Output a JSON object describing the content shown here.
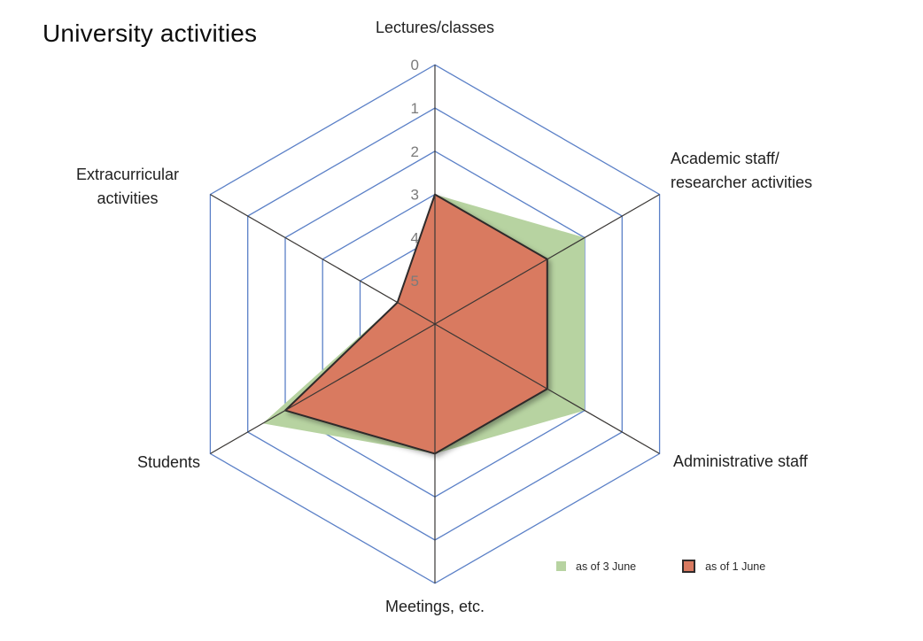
{
  "title": "University activities",
  "chart_data": {
    "type": "radar",
    "axes": [
      {
        "name": "Lectures/classes",
        "lines": [
          "Lectures/classes"
        ]
      },
      {
        "name": "Academic staff/researcher activities",
        "lines": [
          "Academic staff/",
          "researcher activities"
        ]
      },
      {
        "name": "Administrative staff",
        "lines": [
          "Administrative staff"
        ]
      },
      {
        "name": "Meetings, etc.",
        "lines": [
          "Meetings, etc."
        ]
      },
      {
        "name": "Students",
        "lines": [
          "Students"
        ]
      },
      {
        "name": "Extracurricular activities",
        "lines": [
          "Extracurricular",
          "activities"
        ]
      }
    ],
    "scale": {
      "outer_value": 0,
      "center_value": 6,
      "reversed": true,
      "tick_labels": [
        "0",
        "1",
        "2",
        "3",
        "4",
        "5"
      ]
    },
    "series": [
      {
        "name": "as of 3 June",
        "fill": "#b7d3a1",
        "values": [
          3,
          2,
          2,
          3,
          1.4,
          5
        ]
      },
      {
        "name": "as of 1 June",
        "fill": "#d97a61",
        "stroke": "#2f2b2b",
        "values": [
          3,
          3,
          3,
          3,
          2,
          5
        ]
      }
    ],
    "grid": true,
    "legend_position": "bottom-right"
  },
  "colors": {
    "gridline": "#5b80c7",
    "spoke": "#3a3735",
    "tick_label": "#7b7b7b",
    "label_text": "#1f1f1f"
  }
}
